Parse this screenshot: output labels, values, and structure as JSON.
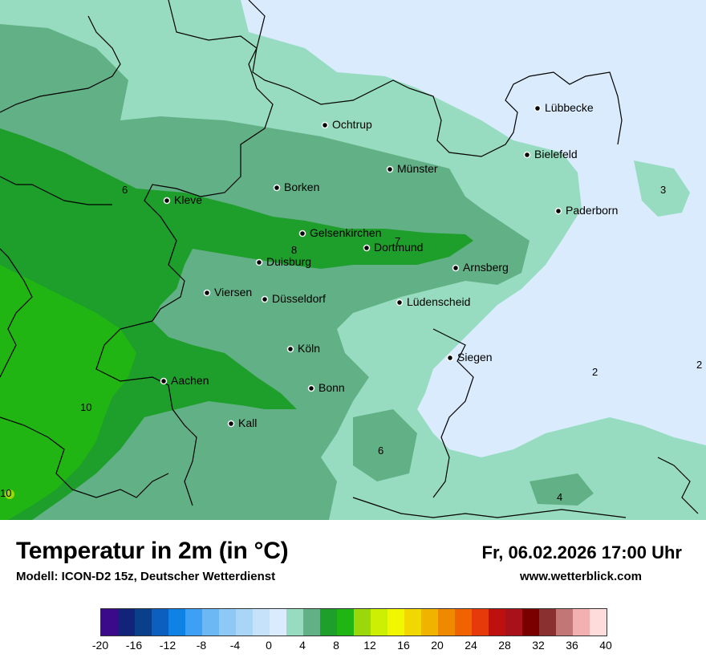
{
  "title": "Temperatur in 2m (in °C)",
  "model": "Modell: ICON-D2 15z, Deutscher Wetterdienst",
  "datetime": "Fr, 06.02.2026 17:00 Uhr",
  "website": "www.wetterblick.com",
  "legend": {
    "colors": [
      "#3a0a8a",
      "#13237a",
      "#0a3f8a",
      "#0d5fbf",
      "#0f82e6",
      "#3da0f5",
      "#6cb8f5",
      "#8dc8f7",
      "#a9d6f7",
      "#c5e2fa",
      "#d9ebfc",
      "#97dcc0",
      "#62b086",
      "#1e9e2a",
      "#21b513",
      "#9ad80c",
      "#cdef04",
      "#f1f700",
      "#f1d800",
      "#f0b300",
      "#ef8a00",
      "#ef6400",
      "#e63a0a",
      "#bf1010",
      "#a8101a",
      "#7a0000",
      "#8b3030",
      "#c27676",
      "#f2b0b0",
      "#ffdcdc"
    ],
    "ticks": [
      "-20",
      "-16",
      "-12",
      "-8",
      "-4",
      "0",
      "4",
      "8",
      "12",
      "16",
      "20",
      "24",
      "28",
      "32",
      "36",
      "40"
    ]
  },
  "cities": [
    {
      "name": "Lübbecke"
    },
    {
      "name": "Ochtrup"
    },
    {
      "name": "Bielefeld"
    },
    {
      "name": "Münster"
    },
    {
      "name": "Borken"
    },
    {
      "name": "Kleve"
    },
    {
      "name": "Paderborn"
    },
    {
      "name": "Gelsenkirchen"
    },
    {
      "name": "Dortmund"
    },
    {
      "name": "Duisburg"
    },
    {
      "name": "Arnsberg"
    },
    {
      "name": "Viersen"
    },
    {
      "name": "Düsseldorf"
    },
    {
      "name": "Lüdenscheid"
    },
    {
      "name": "Köln"
    },
    {
      "name": "Siegen"
    },
    {
      "name": "Aachen"
    },
    {
      "name": "Bonn"
    },
    {
      "name": "Kall"
    }
  ],
  "map_values": [
    "6",
    "3",
    "8",
    "7",
    "2",
    "2",
    "10",
    "6",
    "4",
    "10"
  ]
}
